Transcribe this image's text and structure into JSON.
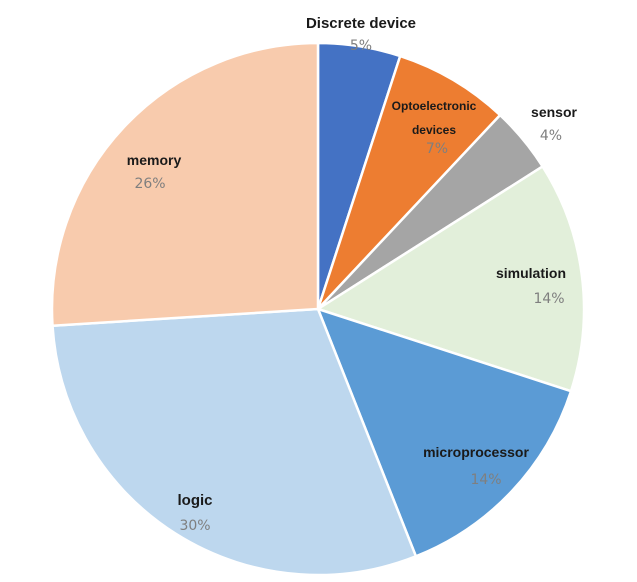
{
  "chart_data": {
    "type": "pie",
    "title": "",
    "slices": [
      {
        "label": "Discrete device",
        "value_label": "5%",
        "value": 5,
        "color": "#4472c4"
      },
      {
        "label": "Optoelectronic devices",
        "label_lines": [
          "Optoelectronic",
          "devices"
        ],
        "value_label": "7%",
        "value": 7,
        "color": "#ed7d31"
      },
      {
        "label": "sensor",
        "value_label": "4%",
        "value": 4,
        "color": "#a5a5a5"
      },
      {
        "label": "simulation",
        "value_label": "14%",
        "value": 14,
        "color": "#e2efda"
      },
      {
        "label": "microprocessor",
        "value_label": "14%",
        "value": 14,
        "color": "#5b9bd5"
      },
      {
        "label": "logic",
        "value_label": "30%",
        "value": 30,
        "color": "#bdd7ee"
      },
      {
        "label": "memory",
        "value_label": "26%",
        "value": 26,
        "color": "#f8cbad"
      }
    ]
  }
}
